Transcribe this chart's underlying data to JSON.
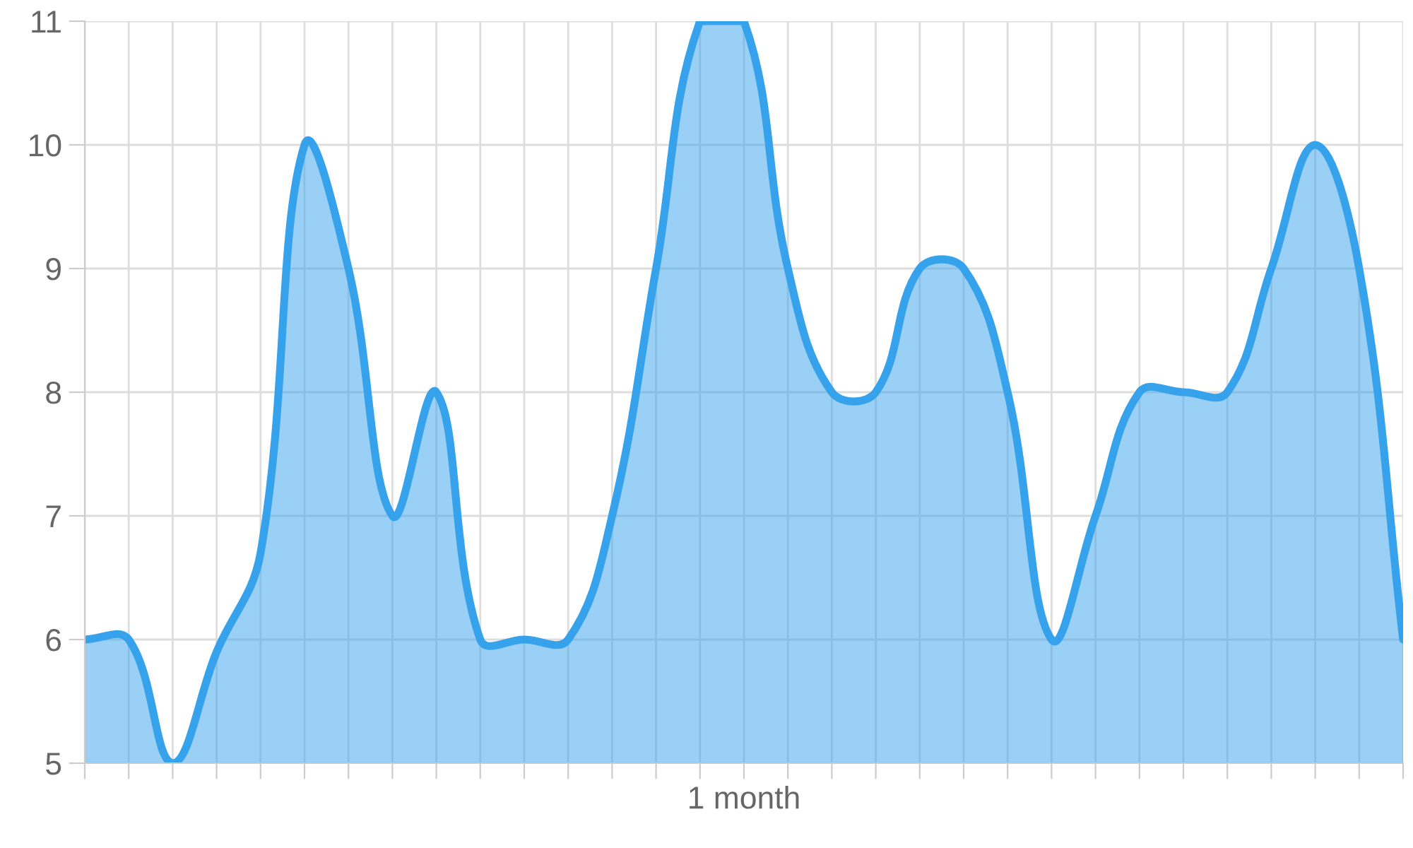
{
  "chart_data": {
    "type": "area",
    "categories": [
      null,
      null,
      null,
      null,
      null,
      null,
      null,
      null,
      null,
      null,
      null,
      null,
      null,
      null,
      null,
      "1 month",
      null,
      null,
      null,
      null,
      null,
      null,
      null,
      null,
      null,
      null,
      null,
      null,
      null,
      null,
      null
    ],
    "series": [
      {
        "color": "#36a2eb",
        "values": [
          6,
          6,
          5,
          5.9,
          6.7,
          10,
          9,
          7,
          8,
          6,
          6,
          6,
          7,
          9,
          11,
          11,
          9,
          8,
          8,
          9,
          9,
          8,
          6,
          7,
          8,
          8,
          8,
          9,
          10,
          9,
          6
        ]
      }
    ],
    "ylim": [
      5,
      11
    ],
    "yticks": [
      5,
      6,
      7,
      8,
      9,
      10,
      11
    ],
    "grid": true,
    "legend": false
  }
}
